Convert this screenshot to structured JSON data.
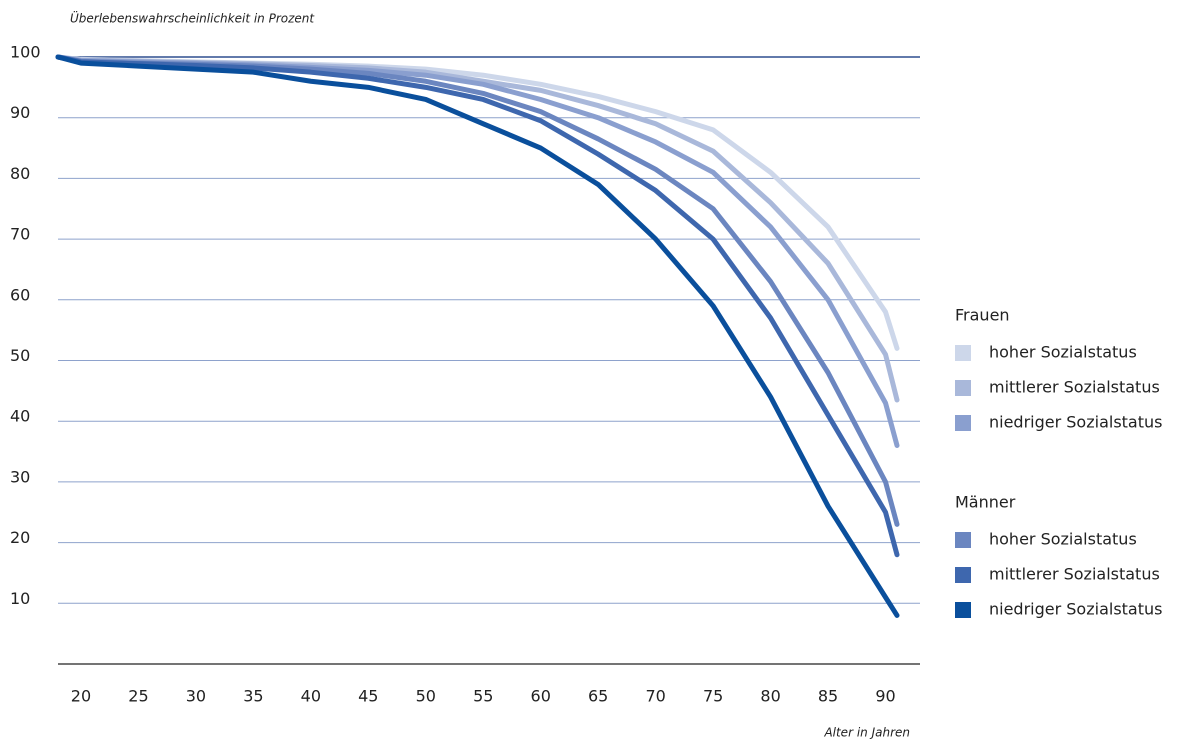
{
  "chart_data": {
    "type": "line",
    "y_label": "Überlebenswahrscheinlichkeit in Prozent",
    "x_label": "Alter in Jahren",
    "x": [
      18,
      20,
      25,
      30,
      35,
      40,
      45,
      50,
      55,
      60,
      65,
      70,
      75,
      80,
      85,
      90,
      91
    ],
    "series": [
      {
        "group": "Frauen",
        "name": "hoher Sozialstatus",
        "color": "#cdd7ea",
        "values": [
          100,
          99.6,
          99.4,
          99.2,
          99,
          98.8,
          98.5,
          98,
          97,
          95.5,
          93.5,
          91,
          88,
          81,
          72,
          58,
          52
        ]
      },
      {
        "group": "Frauen",
        "name": "mittlerer Sozialstatus",
        "color": "#a9b8da",
        "values": [
          100,
          99.5,
          99.3,
          99.1,
          98.9,
          98.6,
          98.2,
          97.5,
          96,
          94.5,
          92,
          89,
          84.5,
          76,
          66,
          51,
          43.5
        ]
      },
      {
        "group": "Frauen",
        "name": "niedriger Sozialstatus",
        "color": "#8a9fcf",
        "values": [
          100,
          99.4,
          99.2,
          99,
          98.7,
          98.3,
          97.8,
          97,
          95.5,
          93,
          90,
          86,
          81,
          72,
          60,
          43,
          36
        ]
      },
      {
        "group": "Männer",
        "name": "hoher Sozialstatus",
        "color": "#6b86c0",
        "values": [
          100,
          99.3,
          99,
          98.8,
          98.5,
          98,
          97.3,
          96,
          94,
          91,
          86.5,
          81.5,
          75,
          63,
          48,
          30,
          23
        ]
      },
      {
        "group": "Männer",
        "name": "mittlerer Sozialstatus",
        "color": "#3e67ae",
        "values": [
          100,
          99.2,
          98.9,
          98.6,
          98.2,
          97.5,
          96.5,
          95,
          93,
          89.5,
          84,
          78,
          70,
          57,
          41,
          25,
          18
        ]
      },
      {
        "group": "Männer",
        "name": "niedriger Sozialstatus",
        "color": "#0a4f9c",
        "values": [
          100,
          99,
          98.5,
          98,
          97.5,
          96,
          95,
          93,
          89,
          85,
          79,
          70,
          59,
          44,
          26,
          11,
          8
        ]
      }
    ],
    "xlim": [
      18,
      93
    ],
    "xticks": [
      20,
      25,
      30,
      35,
      40,
      45,
      50,
      55,
      60,
      65,
      70,
      75,
      80,
      85,
      90
    ],
    "ylim": [
      0,
      100
    ],
    "yticks": [
      10,
      20,
      30,
      40,
      50,
      60,
      70,
      80,
      90,
      100
    ],
    "grid": true
  }
}
